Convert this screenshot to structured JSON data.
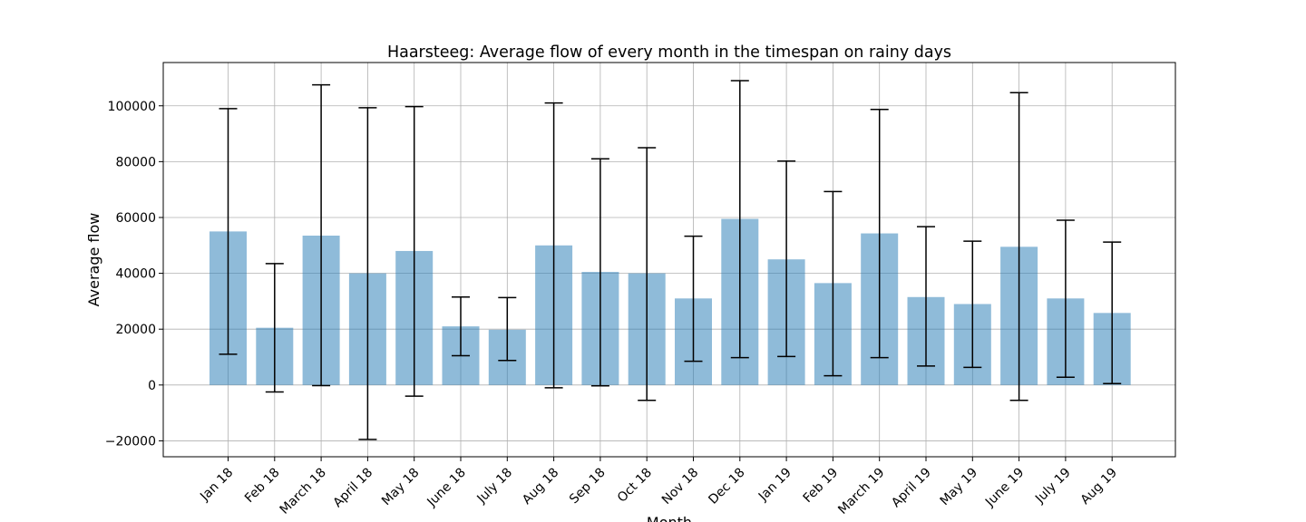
{
  "chart_data": {
    "type": "bar",
    "title": "Haarsteeg: Average flow of every month in the timespan on rainy days",
    "xlabel": "Month",
    "ylabel": "Average flow",
    "categories": [
      "Jan 18",
      "Feb 18",
      "March 18",
      "April 18",
      "May 18",
      "June 18",
      "July 18",
      "Aug 18",
      "Sep 18",
      "Oct 18",
      "Nov 18",
      "Dec 18",
      "Jan 19",
      "Feb 19",
      "March 19",
      "April 19",
      "May 19",
      "June 19",
      "July 19",
      "Aug 19"
    ],
    "values": [
      55000,
      20500,
      53500,
      40000,
      48000,
      21000,
      19800,
      50000,
      40500,
      40000,
      31000,
      59500,
      45000,
      36500,
      54300,
      31500,
      29000,
      49500,
      31000,
      25800
    ],
    "error_low": [
      11000,
      -2500,
      -200,
      -19500,
      -4000,
      10500,
      8800,
      -1000,
      -300,
      -5500,
      8500,
      9800,
      10200,
      3300,
      9800,
      6800,
      6300,
      -5500,
      2800,
      500
    ],
    "error_high": [
      99000,
      43500,
      107500,
      99300,
      99700,
      31500,
      31300,
      101000,
      81000,
      85000,
      53300,
      109000,
      80200,
      69300,
      98700,
      56700,
      51500,
      104700,
      59000,
      51200
    ],
    "ylim": [
      -25700,
      115500
    ],
    "yticks": [
      -20000,
      0,
      20000,
      40000,
      60000,
      80000,
      100000
    ],
    "grid": true,
    "colors": {
      "bar": "#1f77b4",
      "bar_alpha": 0.5,
      "error": "#000000",
      "grid": "#b0b0b0"
    }
  }
}
